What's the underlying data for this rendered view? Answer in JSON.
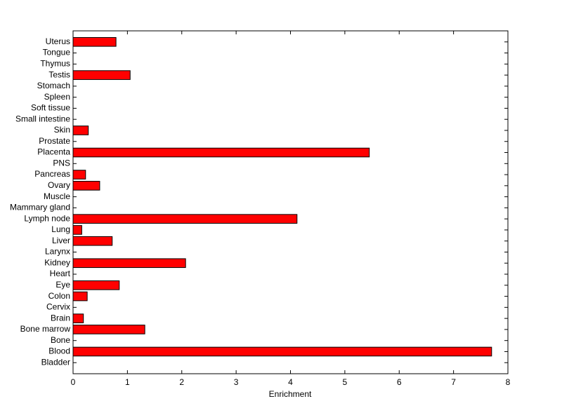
{
  "chart_data": {
    "type": "barh",
    "xlabel": "Enrichment",
    "categories": [
      "Bladder",
      "Blood",
      "Bone",
      "Bone marrow",
      "Brain",
      "Cervix",
      "Colon",
      "Eye",
      "Heart",
      "Kidney",
      "Larynx",
      "Liver",
      "Lung",
      "Lymph node",
      "Mammary gland",
      "Muscle",
      "Ovary",
      "Pancreas",
      "PNS",
      "Placenta",
      "Prostate",
      "Skin",
      "Small intestine",
      "Soft tissue",
      "Spleen",
      "Stomach",
      "Testis",
      "Thymus",
      "Tongue",
      "Uterus"
    ],
    "values": [
      0,
      7.7,
      0,
      1.32,
      0.19,
      0,
      0.26,
      0.85,
      0,
      2.07,
      0,
      0.72,
      0.16,
      4.12,
      0,
      0,
      0.49,
      0.23,
      0,
      5.45,
      0,
      0.28,
      0,
      0,
      0,
      0,
      1.05,
      0,
      0,
      0.79
    ],
    "color": "#ff0000",
    "xlim": [
      0,
      8
    ],
    "xticks": [
      0,
      1,
      2,
      3,
      4,
      5,
      6,
      7,
      8
    ]
  }
}
